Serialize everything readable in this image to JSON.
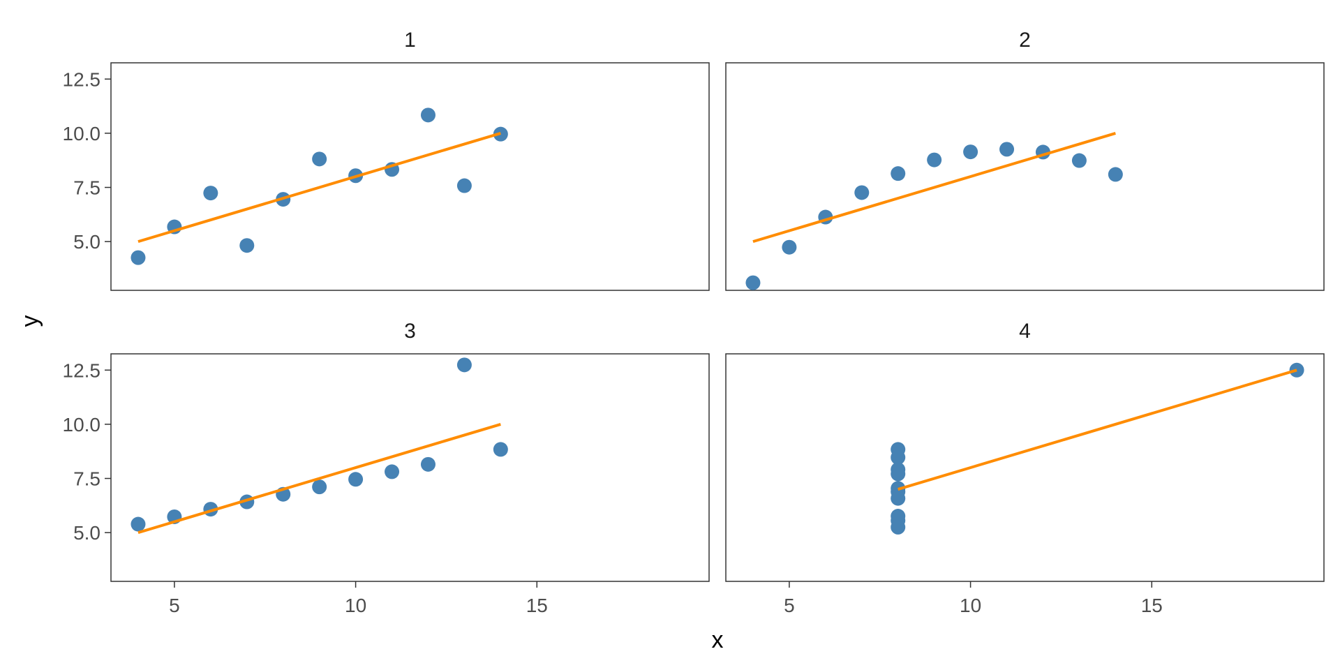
{
  "figure": {
    "xlabel": "x",
    "ylabel": "y"
  },
  "colors": {
    "point": "#4682b4",
    "fit_line": "#ff8c00",
    "panel_border": "#333333",
    "tick_text": "#4d4d4d"
  },
  "chart_data": [
    {
      "type": "scatter",
      "title": "1",
      "x": [
        10,
        8,
        13,
        9,
        11,
        14,
        6,
        4,
        12,
        7,
        5
      ],
      "y": [
        8.04,
        6.95,
        7.58,
        8.81,
        8.33,
        9.96,
        7.24,
        4.26,
        10.84,
        4.82,
        5.68
      ],
      "fit": {
        "x": [
          4,
          14
        ],
        "y": [
          5.0,
          10.0
        ]
      },
      "xlim": [
        3.25,
        19.75
      ],
      "ylim": [
        2.75,
        13.25
      ],
      "xticks": [
        5,
        10,
        15
      ],
      "yticks": [
        5.0,
        7.5,
        10.0,
        12.5
      ],
      "xtick_labels": [
        "5",
        "10",
        "15"
      ],
      "ytick_labels": [
        "5.0",
        "7.5",
        "10.0",
        "12.5"
      ],
      "show_xticks": false,
      "show_yticks": true,
      "grid": false
    },
    {
      "type": "scatter",
      "title": "2",
      "x": [
        10,
        8,
        13,
        9,
        11,
        14,
        6,
        4,
        12,
        7,
        5
      ],
      "y": [
        9.14,
        8.14,
        8.74,
        8.77,
        9.26,
        8.1,
        6.13,
        3.1,
        9.13,
        7.26,
        4.74
      ],
      "fit": {
        "x": [
          4,
          14
        ],
        "y": [
          5.0,
          10.0
        ]
      },
      "xlim": [
        3.25,
        19.75
      ],
      "ylim": [
        2.75,
        13.25
      ],
      "xticks": [
        5,
        10,
        15
      ],
      "yticks": [
        5.0,
        7.5,
        10.0,
        12.5
      ],
      "xtick_labels": [
        "5",
        "10",
        "15"
      ],
      "ytick_labels": [
        "5.0",
        "7.5",
        "10.0",
        "12.5"
      ],
      "show_xticks": false,
      "show_yticks": false,
      "grid": false
    },
    {
      "type": "scatter",
      "title": "3",
      "x": [
        10,
        8,
        13,
        9,
        11,
        14,
        6,
        4,
        12,
        7,
        5
      ],
      "y": [
        7.46,
        6.77,
        12.74,
        7.11,
        7.81,
        8.84,
        6.08,
        5.39,
        8.15,
        6.42,
        5.73
      ],
      "fit": {
        "x": [
          4,
          14
        ],
        "y": [
          5.0,
          10.0
        ]
      },
      "xlim": [
        3.25,
        19.75
      ],
      "ylim": [
        2.75,
        13.25
      ],
      "xticks": [
        5,
        10,
        15
      ],
      "yticks": [
        5.0,
        7.5,
        10.0,
        12.5
      ],
      "xtick_labels": [
        "5",
        "10",
        "15"
      ],
      "ytick_labels": [
        "5.0",
        "7.5",
        "10.0",
        "12.5"
      ],
      "show_xticks": true,
      "show_yticks": true,
      "grid": false
    },
    {
      "type": "scatter",
      "title": "4",
      "x": [
        8,
        8,
        8,
        8,
        8,
        8,
        8,
        19,
        8,
        8,
        8
      ],
      "y": [
        6.58,
        5.76,
        7.71,
        8.84,
        8.47,
        7.04,
        5.25,
        12.5,
        5.56,
        7.91,
        6.89
      ],
      "fit": {
        "x": [
          8,
          19
        ],
        "y": [
          7.0,
          12.5
        ]
      },
      "xlim": [
        3.25,
        19.75
      ],
      "ylim": [
        2.75,
        13.25
      ],
      "xticks": [
        5,
        10,
        15
      ],
      "yticks": [
        5.0,
        7.5,
        10.0,
        12.5
      ],
      "xtick_labels": [
        "5",
        "10",
        "15"
      ],
      "ytick_labels": [
        "5.0",
        "7.5",
        "10.0",
        "12.5"
      ],
      "show_xticks": true,
      "show_yticks": false,
      "grid": false
    }
  ]
}
